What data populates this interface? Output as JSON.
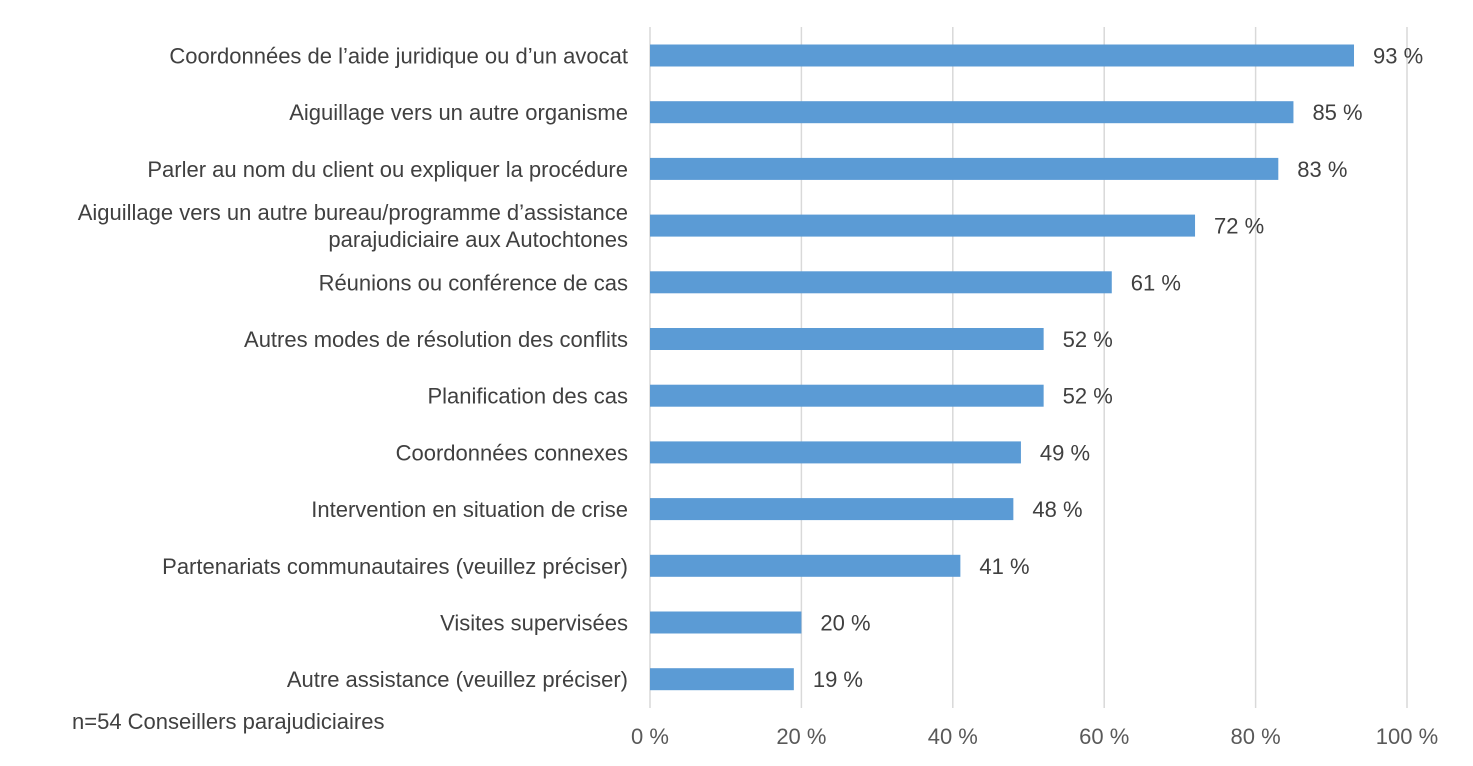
{
  "chart_data": {
    "type": "bar",
    "orientation": "horizontal",
    "categories": [
      [
        "Coordonnées de l’aide juridique ou d’un avocat"
      ],
      [
        "Aiguillage vers un autre organisme"
      ],
      [
        "Parler au nom du client ou expliquer la procédure"
      ],
      [
        "Aiguillage vers un autre bureau/programme d’assistance",
        "parajudiciaire aux Autochtones"
      ],
      [
        "Réunions ou conférence de cas"
      ],
      [
        "Autres modes de résolution des conflits"
      ],
      [
        "Planification des cas"
      ],
      [
        "Coordonnées connexes"
      ],
      [
        "Intervention en situation de crise"
      ],
      [
        "Partenariats communautaires (veuillez préciser)"
      ],
      [
        "Visites supervisées"
      ],
      [
        "Autre assistance (veuillez préciser)"
      ]
    ],
    "values": [
      93,
      85,
      83,
      72,
      61,
      52,
      52,
      49,
      48,
      41,
      20,
      19
    ],
    "value_labels": [
      "93 %",
      "85 %",
      "83 %",
      "72 %",
      "61 %",
      "52 %",
      "52 %",
      "49 %",
      "48 %",
      "41 %",
      "20 %",
      "19 %"
    ],
    "xlim": [
      0,
      100
    ],
    "xticks": [
      0,
      20,
      40,
      60,
      80,
      100
    ],
    "xtick_labels": [
      "0 %",
      "20 %",
      "40 %",
      "60 %",
      "80 %",
      "100 %"
    ],
    "grid": "vertical",
    "legend": "none",
    "bar_color": "#5b9bd5",
    "note": "n=54 Conseillers parajudiciaires"
  }
}
